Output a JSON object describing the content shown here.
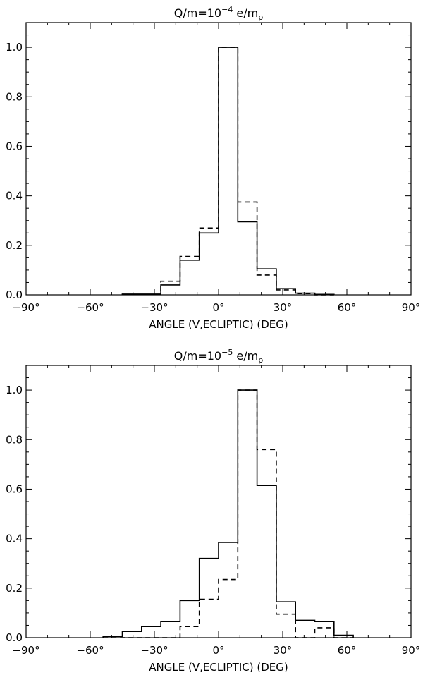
{
  "chart_data": [
    {
      "type": "step",
      "title": {
        "prefix": "Q/m=10",
        "exponent": "−4",
        "suffix": " e/m",
        "subscript": "p"
      },
      "xlabel": "ANGLE (V,ECLIPTIC) (DEG)",
      "xlim": [
        -90,
        90
      ],
      "ylim": [
        0,
        1.1
      ],
      "xticks": [
        -90,
        -60,
        -30,
        0,
        30,
        60,
        90
      ],
      "xtick_labels": [
        "−90°",
        "−60°",
        "−30°",
        "0°",
        "30°",
        "60°",
        "90°"
      ],
      "yticks": [
        0,
        0.2,
        0.4,
        0.6,
        0.8,
        1.0
      ],
      "ytick_labels": [
        "0.0",
        "0.2",
        "0.4",
        "0.6",
        "0.8",
        "1.0"
      ],
      "bin_edges": [
        -45,
        -36,
        -27,
        -18,
        -9,
        0,
        9,
        18,
        27,
        36,
        45,
        54
      ],
      "series": [
        {
          "style": "solid",
          "values": [
            0.003,
            0.003,
            0.04,
            0.14,
            0.25,
            1.0,
            0.295,
            0.105,
            0.025,
            0.007,
            0.002
          ]
        },
        {
          "style": "dashed",
          "values": [
            0.002,
            0.002,
            0.055,
            0.155,
            0.27,
            1.0,
            0.375,
            0.08,
            0.02,
            0.005,
            0.0
          ]
        }
      ]
    },
    {
      "type": "step",
      "title": {
        "prefix": "Q/m=10",
        "exponent": "−5",
        "suffix": " e/m",
        "subscript": "p"
      },
      "xlabel": "ANGLE (V,ECLIPTIC) (DEG)",
      "xlim": [
        -90,
        90
      ],
      "ylim": [
        0,
        1.1
      ],
      "xticks": [
        -90,
        -60,
        -30,
        0,
        30,
        60,
        90
      ],
      "xtick_labels": [
        "−90°",
        "−60°",
        "−30°",
        "0°",
        "30°",
        "60°",
        "90°"
      ],
      "yticks": [
        0,
        0.2,
        0.4,
        0.6,
        0.8,
        1.0
      ],
      "ytick_labels": [
        "0.0",
        "0.2",
        "0.4",
        "0.6",
        "0.8",
        "1.0"
      ],
      "bin_edges": [
        -54,
        -45,
        -36,
        -27,
        -18,
        -9,
        0,
        9,
        18,
        27,
        36,
        45,
        54,
        63
      ],
      "series": [
        {
          "style": "solid",
          "values": [
            0.005,
            0.025,
            0.045,
            0.065,
            0.15,
            0.32,
            0.385,
            1.0,
            0.615,
            0.145,
            0.07,
            0.065,
            0.01
          ]
        },
        {
          "style": "dashed",
          "values": [
            0.0,
            0.0,
            0.0,
            0.0,
            0.045,
            0.155,
            0.235,
            1.0,
            0.76,
            0.095,
            0.0,
            0.04,
            0.0
          ]
        }
      ]
    }
  ]
}
